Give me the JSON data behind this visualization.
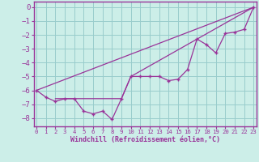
{
  "xlabel": "Windchill (Refroidissement éolien,°C)",
  "x_ticks": [
    0,
    1,
    2,
    3,
    4,
    5,
    6,
    7,
    8,
    9,
    10,
    11,
    12,
    13,
    14,
    15,
    16,
    17,
    18,
    19,
    20,
    21,
    22,
    23
  ],
  "y_ticks": [
    0,
    -1,
    -2,
    -3,
    -4,
    -5,
    -6,
    -7,
    -8
  ],
  "xlim": [
    -0.3,
    23.3
  ],
  "ylim": [
    -8.6,
    0.4
  ],
  "background_color": "#cceee8",
  "line_color": "#993399",
  "grid_color": "#99cccc",
  "spine_color": "#993399",
  "line1_x": [
    0,
    1,
    2,
    3,
    4,
    5,
    6,
    7,
    8,
    9,
    10,
    11,
    12,
    13,
    14,
    15,
    16,
    17,
    18,
    19,
    20,
    21,
    22,
    23
  ],
  "line1_y": [
    -6.0,
    -6.5,
    -6.8,
    -6.6,
    -6.6,
    -7.5,
    -7.7,
    -7.5,
    -8.1,
    -6.6,
    -5.0,
    -5.0,
    -5.0,
    -5.0,
    -5.3,
    -5.2,
    -4.5,
    -2.3,
    -2.7,
    -3.3,
    -1.9,
    -1.8,
    -1.6,
    0.0
  ],
  "line2_x": [
    0,
    23
  ],
  "line2_y": [
    -6.0,
    0.0
  ],
  "line3_x": [
    2,
    9,
    10,
    23
  ],
  "line3_y": [
    -6.6,
    -6.6,
    -5.0,
    0.0
  ],
  "ylabel_fontsize": 6.5,
  "xlabel_fontsize": 6.0,
  "xtick_fontsize": 5.2,
  "ytick_fontsize": 6.5
}
